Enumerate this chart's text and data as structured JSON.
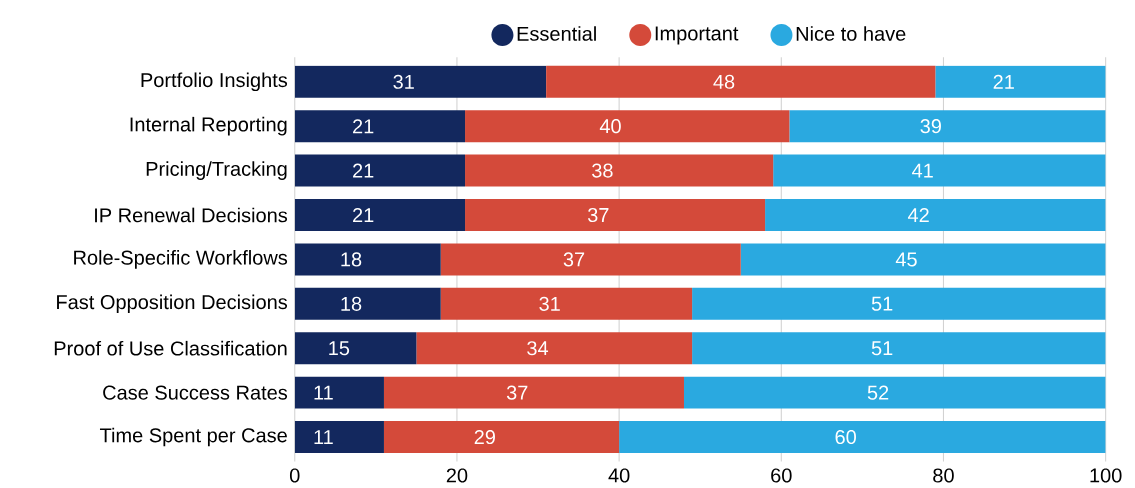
{
  "chart_data": {
    "type": "bar",
    "orientation": "horizontal",
    "stacked": true,
    "categories": [
      "Portfolio Insights",
      "Internal Reporting",
      "Pricing/Tracking",
      "IP Renewal Decisions",
      "Role-Specific Workflows",
      "Fast Opposition Decisions",
      "Proof of Use Classification",
      "Case Success Rates",
      "Time Spent per Case"
    ],
    "series": [
      {
        "name": "Essential",
        "color": "#13285e",
        "values": [
          31,
          21,
          21,
          21,
          18,
          18,
          15,
          11,
          11
        ]
      },
      {
        "name": "Important",
        "color": "#d44a3a",
        "values": [
          48,
          40,
          38,
          37,
          37,
          31,
          34,
          37,
          29
        ]
      },
      {
        "name": "Nice to have",
        "color": "#2aa9e0",
        "values": [
          21,
          39,
          41,
          42,
          45,
          51,
          51,
          52,
          60
        ]
      }
    ],
    "xlim": [
      0,
      100
    ],
    "xticks": [
      0,
      20,
      40,
      60,
      80,
      100
    ],
    "grid": "x",
    "legend": "top",
    "data_labels": true
  }
}
